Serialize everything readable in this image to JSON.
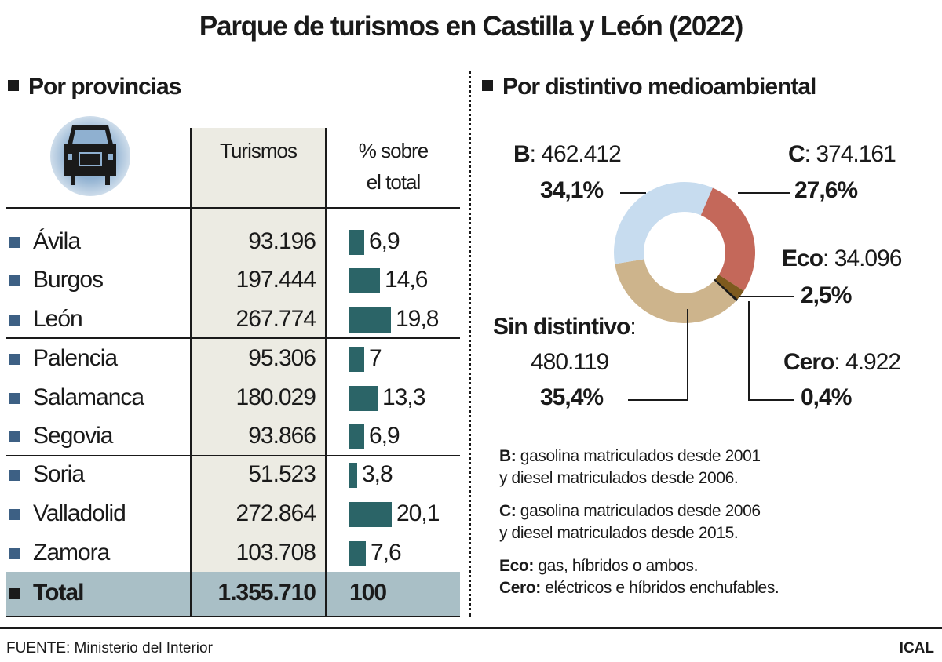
{
  "title": "Parque de turismos en Castilla y León (2022)",
  "left": {
    "heading": "Por provincias",
    "icon": "car-icon",
    "col_turismos": "Turismos",
    "col_pct_1": "% sobre",
    "col_pct_2": "el total",
    "rows": [
      {
        "name": "Ávila",
        "turismos": "93.196",
        "pct": "6,9",
        "pct_value": 6.9
      },
      {
        "name": "Burgos",
        "turismos": "197.444",
        "pct": "14,6",
        "pct_value": 14.6
      },
      {
        "name": "León",
        "turismos": "267.774",
        "pct": "19,8",
        "pct_value": 19.8
      },
      {
        "name": "Palencia",
        "turismos": "95.306",
        "pct": "7",
        "pct_value": 7
      },
      {
        "name": "Salamanca",
        "turismos": "180.029",
        "pct": "13,3",
        "pct_value": 13.3
      },
      {
        "name": "Segovia",
        "turismos": "93.866",
        "pct": "6,9",
        "pct_value": 6.9
      },
      {
        "name": "Soria",
        "turismos": "51.523",
        "pct": "3,8",
        "pct_value": 3.8
      },
      {
        "name": "Valladolid",
        "turismos": "272.864",
        "pct": "20,1",
        "pct_value": 20.1
      },
      {
        "name": "Zamora",
        "turismos": "103.708",
        "pct": "7,6",
        "pct_value": 7.6
      }
    ],
    "total": {
      "name": "Total",
      "turismos": "1.355.710",
      "pct": "100"
    }
  },
  "right": {
    "heading": "Por distintivo medioambiental"
  },
  "chart_data": {
    "type": "pie",
    "donut": true,
    "slices": [
      {
        "name": "C",
        "count": "374.161",
        "label": "27,6%",
        "value": 27.6,
        "color": "#c4685a"
      },
      {
        "name": "Eco",
        "count": "34.096",
        "label": "2,5%",
        "value": 2.5,
        "color": "#7e5a1e"
      },
      {
        "name": "Cero",
        "count": "4.922",
        "label": "0,4%",
        "value": 0.4,
        "color": "#1a1a1a"
      },
      {
        "name": "Sin distintivo",
        "count": "480.119",
        "label": "35,4%",
        "value": 35.4,
        "color": "#cdb48c"
      },
      {
        "name": "B",
        "count": "462.412",
        "label": "34,1%",
        "value": 34.1,
        "color": "#c7dcef"
      }
    ]
  },
  "notes": [
    {
      "key": "B:",
      "text": " gasolina matriculados desde 2001"
    },
    {
      "key": "",
      "text": "y diesel matriculados desde 2006."
    },
    {
      "key": "C:",
      "text": " gasolina matriculados desde 2006"
    },
    {
      "key": "",
      "text": "y diesel matriculados desde 2015."
    },
    {
      "key": "Eco:",
      "text": " gas, híbridos o ambos."
    },
    {
      "key": "Cero:",
      "text": " eléctricos e híbridos enchufables."
    }
  ],
  "footer": {
    "source": "FUENTE: Ministerio del Interior",
    "brand": "ICAL"
  }
}
